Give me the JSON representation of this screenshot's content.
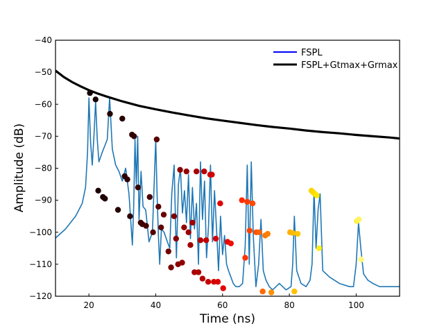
{
  "chart_data": {
    "type": "line",
    "title": "",
    "xlabel": "Time (ns)",
    "ylabel": "Amplitude (dB)",
    "xlim": [
      10,
      113
    ],
    "ylim": [
      -120,
      -40
    ],
    "xticks": [
      20,
      40,
      60,
      80,
      100
    ],
    "xtick_labels": [
      "20",
      "40",
      "60",
      "80",
      "100"
    ],
    "yticks": [
      -120,
      -110,
      -100,
      -90,
      -80,
      -70,
      -60,
      -50,
      -40
    ],
    "ytick_labels": [
      "−120",
      "−110",
      "−100",
      "−90",
      "−80",
      "−70",
      "−60",
      "−50",
      "−40"
    ],
    "legend_placement": "upper-right",
    "colors": {
      "fspl": "#0000ff",
      "fspl_gain": "#000000",
      "response": "#1f77b4"
    },
    "legend": [
      {
        "label": "FSPL",
        "color": "#0000ff"
      },
      {
        "label": "FSPL+Gtmax+Grmax",
        "color": "#000000"
      }
    ],
    "series": [
      {
        "name": "FSPL+Gtmax+Grmax",
        "x": [
          10,
          12.5,
          15,
          17.5,
          20,
          22.5,
          25,
          30,
          35,
          40,
          45,
          50,
          55,
          60,
          65,
          70,
          75,
          80,
          85,
          90,
          95,
          100,
          105,
          110,
          113
        ],
        "y": [
          -49.5,
          -51.5,
          -53.1,
          -54.4,
          -55.6,
          -56.6,
          -57.5,
          -59.1,
          -60.5,
          -61.6,
          -62.6,
          -63.5,
          -64.4,
          -65.1,
          -65.8,
          -66.5,
          -67.1,
          -67.6,
          -68.2,
          -68.7,
          -69.1,
          -69.6,
          -70.0,
          -70.4,
          -70.7
        ]
      },
      {
        "name": "FSPL",
        "x": [],
        "y": []
      }
    ],
    "response": {
      "x": [
        10,
        13,
        16,
        18,
        19,
        19.6,
        20,
        20.5,
        21,
        21.6,
        22,
        22.5,
        23,
        24,
        25.5,
        26.2,
        27,
        28,
        29,
        30,
        31,
        32,
        33,
        33.4,
        33.8,
        34.2,
        34.6,
        35,
        35.6,
        36.2,
        37,
        38,
        39,
        40,
        40.4,
        40.8,
        41.2,
        41.7,
        42.5,
        43.5,
        44.2,
        44.8,
        45.5,
        46.2,
        46.8,
        47.4,
        48,
        48.6,
        49.2,
        49.8,
        50.4,
        51,
        51.6,
        52.2,
        52.8,
        53.4,
        54,
        54.6,
        55.2,
        55.8,
        56.4,
        57,
        57.6,
        58.2,
        58.8,
        59.4,
        60,
        60.6,
        61.2,
        61.8,
        62.5,
        63.2,
        64,
        65,
        66,
        66.8,
        67.4,
        68,
        68.6,
        69.2,
        70,
        70.8,
        71.5,
        72.2,
        73,
        74,
        75,
        77,
        79,
        80.5,
        81,
        81.5,
        82.2,
        83.5,
        85,
        86.2,
        86.8,
        87.4,
        88,
        88.6,
        89.2,
        90,
        92,
        95,
        98,
        99.2,
        100,
        100.7,
        101.4,
        102.2,
        103.5,
        105,
        107,
        110,
        113
      ],
      "y": [
        -101.8,
        -99,
        -95,
        -91,
        -86,
        -75,
        -58,
        -72,
        -79,
        -68,
        -59,
        -71,
        -78,
        -75,
        -71,
        -58,
        -74,
        -79,
        -81,
        -84,
        -80,
        -88,
        -104,
        -92,
        -71,
        -85,
        -70,
        -96,
        -81,
        -92,
        -93,
        -103,
        -100,
        -71,
        -88,
        -101,
        -110,
        -99,
        -100,
        -103,
        -105,
        -88,
        -79,
        -108,
        -85,
        -80,
        -94,
        -87,
        -97,
        -82,
        -102,
        -86,
        -99,
        -91,
        -110,
        -78,
        -96,
        -84,
        -108,
        -98,
        -79,
        -103,
        -87,
        -99,
        -112,
        -95,
        -107,
        -101,
        -110,
        -112,
        -114,
        -116,
        -117,
        -117,
        -116,
        -104,
        -79,
        -110,
        -78,
        -101,
        -117,
        -110,
        -96,
        -112,
        -115,
        -117,
        -118,
        -116,
        -118,
        -117,
        -110,
        -95,
        -112,
        -116,
        -117,
        -115,
        -110,
        -87,
        -105,
        -93,
        -88,
        -112,
        -114,
        -116,
        -117,
        -117,
        -110,
        -97,
        -105,
        -113,
        -115,
        -116,
        -117,
        -117,
        -117
      ]
    },
    "taps": {
      "x": [
        20.3,
        22,
        22.8,
        24.2,
        24.8,
        26.3,
        28.7,
        30,
        30.7,
        31.5,
        32.3,
        32.9,
        33.5,
        34.7,
        35.5,
        36,
        37.1,
        38.2,
        39.2,
        40.3,
        40.8,
        41.6,
        42.4,
        43.8,
        44.6,
        45.5,
        46.1,
        46.7,
        47.3,
        47.9,
        48.5,
        49.2,
        49.8,
        50.4,
        51,
        51.6,
        52.2,
        52.8,
        53.4,
        54,
        54.5,
        55.1,
        55.7,
        56.3,
        56.8,
        57.4,
        58,
        58.6,
        59.3,
        60.2,
        61.5,
        62.5,
        65.8,
        66.8,
        67.4,
        68.1,
        69,
        70.1,
        71,
        72,
        72.8,
        73.5,
        74.6,
        80.2,
        81,
        81.5,
        82.5,
        86.6,
        87.1,
        87.6,
        88.2,
        88.9,
        100.2,
        100.8,
        101.5
      ],
      "y": [
        -56.5,
        -58.5,
        -87,
        -89,
        -89.5,
        -63,
        -93,
        -64.5,
        -82.5,
        -83.5,
        -95,
        -69.5,
        -70,
        -86,
        -97,
        -97.5,
        -98,
        -89,
        -100,
        -71,
        -92,
        -98.5,
        -94.5,
        -106,
        -111,
        -95,
        -102,
        -110,
        -80.5,
        -109.5,
        -98.5,
        -81,
        -100,
        -104,
        -97,
        -112.5,
        -81,
        -112.5,
        -102.5,
        -114.5,
        -81,
        -102.5,
        -115.5,
        -82,
        -82,
        -115.5,
        -102,
        -115.5,
        -91,
        -117.5,
        -103,
        -103.5,
        -90,
        -108,
        -90.5,
        -99.5,
        -91,
        -100,
        -100,
        -118.5,
        -101,
        -100.5,
        -118.8,
        -100,
        -100.2,
        -118.5,
        -100.5,
        -87,
        -87.5,
        -88,
        -88.5,
        -105,
        -96.5,
        -96,
        -108.5
      ],
      "colors": [
        "#120000",
        "#160000",
        "#1c0000",
        "#1e0000",
        "#200000",
        "#220000",
        "#250000",
        "#280000",
        "#2a0000",
        "#2c0000",
        "#300000",
        "#320000",
        "#340000",
        "#360000",
        "#3c0000",
        "#3e0000",
        "#420000",
        "#480000",
        "#500000",
        "#560000",
        "#560000",
        "#600000",
        "#680000",
        "#700000",
        "#780000",
        "#7e0000",
        "#840000",
        "#880000",
        "#8a0000",
        "#8e0000",
        "#920000",
        "#960000",
        "#9a0000",
        "#9e0000",
        "#a20000",
        "#a60000",
        "#aa0000",
        "#ae0000",
        "#b40000",
        "#b80000",
        "#bc0000",
        "#c20000",
        "#c80000",
        "#cc0000",
        "#d00000",
        "#d40000",
        "#d80000",
        "#dc0000",
        "#e00000",
        "#e40000",
        "#ea0a00",
        "#ee1000",
        "#ff2a00",
        "#ff3400",
        "#ff3a00",
        "#ff4200",
        "#ff4a00",
        "#ff5200",
        "#ff6000",
        "#ff6a00",
        "#ff7400",
        "#ff8000",
        "#ff9000",
        "#ffb000",
        "#ffb800",
        "#ffc000",
        "#ffc800",
        "#ffd400",
        "#ffd800",
        "#ffe000",
        "#ffe600",
        "#ffec20",
        "#fff040",
        "#fff460",
        "#fff880"
      ]
    }
  }
}
